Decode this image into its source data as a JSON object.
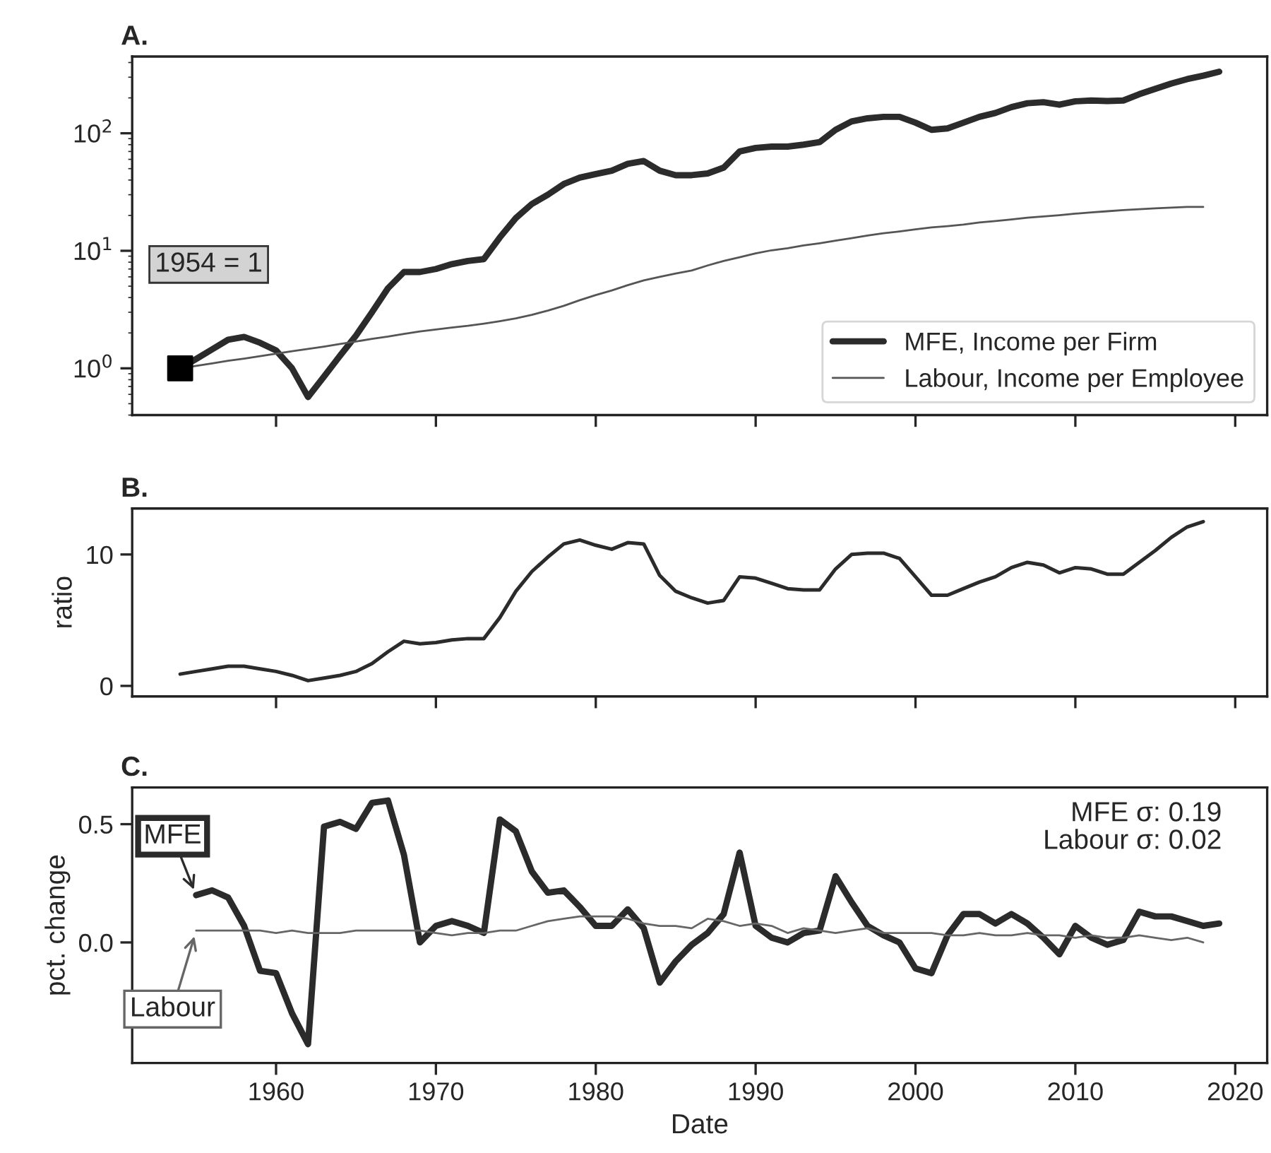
{
  "chart_data": [
    {
      "type": "line",
      "title": "A.",
      "log": "y",
      "xlim": [
        1951,
        2022
      ],
      "xticks": [
        1960,
        1970,
        1980,
        1990,
        2000,
        2010,
        2020
      ],
      "ylim": [
        0.4,
        450
      ],
      "yticks": [
        {
          "value": 1,
          "label": "10$^{0}$"
        },
        {
          "value": 10,
          "label": "10$^{1}$"
        },
        {
          "value": 100,
          "label": "10$^{2}$"
        }
      ],
      "tick_labels": "y",
      "grid": false,
      "legend": "bottom right",
      "annotations": [
        "1954 = 1"
      ],
      "series": [
        {
          "name": "MFE, Income per Firm",
          "color": "#2b2b2b",
          "x": [
            1954,
            1955,
            1956,
            1957,
            1958,
            1959,
            1960,
            1961,
            1962,
            1963,
            1964,
            1965,
            1966,
            1967,
            1968,
            1969,
            1970,
            1971,
            1972,
            1973,
            1974,
            1975,
            1976,
            1977,
            1978,
            1979,
            1980,
            1981,
            1982,
            1983,
            1984,
            1985,
            1986,
            1987,
            1988,
            1989,
            1990,
            1991,
            1992,
            1993,
            1994,
            1995,
            1996,
            1997,
            1998,
            1999,
            2000,
            2001,
            2002,
            2003,
            2004,
            2005,
            2006,
            2007,
            2008,
            2009,
            2010,
            2011,
            2012,
            2013,
            2014,
            2015,
            2016,
            2017,
            2018,
            2019
          ],
          "values": [
            1,
            1.2,
            1.45,
            1.75,
            1.85,
            1.65,
            1.42,
            1.0,
            0.57,
            0.85,
            1.28,
            1.9,
            3.0,
            4.8,
            6.6,
            6.6,
            7.0,
            7.7,
            8.2,
            8.5,
            13,
            19,
            25,
            30,
            37,
            42,
            45,
            48,
            55,
            58,
            48,
            44,
            44,
            45.5,
            51,
            70,
            75,
            77,
            77,
            80,
            84,
            107,
            126,
            134,
            138,
            138,
            123,
            107,
            110,
            123,
            138,
            149,
            167,
            180,
            184,
            175,
            187,
            190,
            188,
            190,
            215,
            239,
            265,
            289,
            309,
            334
          ]
        },
        {
          "name": "Labour, Income per Employee",
          "color": "#555555",
          "x": [
            1954,
            1955,
            1956,
            1957,
            1958,
            1959,
            1960,
            1961,
            1962,
            1963,
            1964,
            1965,
            1966,
            1967,
            1968,
            1969,
            1970,
            1971,
            1972,
            1973,
            1974,
            1975,
            1976,
            1977,
            1978,
            1979,
            1980,
            1981,
            1982,
            1983,
            1984,
            1985,
            1986,
            1987,
            1988,
            1989,
            1990,
            1991,
            1992,
            1993,
            1994,
            1995,
            1996,
            1997,
            1998,
            1999,
            2000,
            2001,
            2002,
            2003,
            2004,
            2005,
            2006,
            2007,
            2008,
            2009,
            2010,
            2011,
            2012,
            2013,
            2014,
            2015,
            2016,
            2017,
            2018
          ],
          "values": [
            1.0,
            1.05,
            1.1,
            1.16,
            1.21,
            1.27,
            1.33,
            1.4,
            1.46,
            1.53,
            1.61,
            1.69,
            1.78,
            1.86,
            1.96,
            2.06,
            2.14,
            2.22,
            2.3,
            2.4,
            2.52,
            2.66,
            2.85,
            3.1,
            3.4,
            3.8,
            4.2,
            4.6,
            5.1,
            5.6,
            6.0,
            6.4,
            6.8,
            7.5,
            8.2,
            8.8,
            9.5,
            10.1,
            10.5,
            11.1,
            11.6,
            12.2,
            12.8,
            13.5,
            14.1,
            14.6,
            15.2,
            15.8,
            16.2,
            16.7,
            17.4,
            17.9,
            18.5,
            19.1,
            19.6,
            20.1,
            20.7,
            21.2,
            21.7,
            22.2,
            22.6,
            23.0,
            23.3,
            23.6,
            23.6
          ]
        },
        {
          "type": "scatter",
          "color": "#000000",
          "marker": "square",
          "x": [
            1954
          ],
          "values": [
            1
          ]
        }
      ]
    },
    {
      "type": "line",
      "title": "B.",
      "ylabel": "ratio",
      "xlim": [
        1951,
        2022
      ],
      "xticks": [
        1960,
        1970,
        1980,
        1990,
        2000,
        2010,
        2020
      ],
      "ylim": [
        -0.8,
        13.5
      ],
      "yticks": [
        0,
        10
      ],
      "tick_labels": "y",
      "grid": false,
      "series": [
        {
          "color": "#2b2b2b",
          "x": [
            1954,
            1955,
            1956,
            1957,
            1958,
            1959,
            1960,
            1961,
            1962,
            1963,
            1964,
            1965,
            1966,
            1967,
            1968,
            1969,
            1970,
            1971,
            1972,
            1973,
            1974,
            1975,
            1976,
            1977,
            1978,
            1979,
            1980,
            1981,
            1982,
            1983,
            1984,
            1985,
            1986,
            1987,
            1988,
            1989,
            1990,
            1991,
            1992,
            1993,
            1994,
            1995,
            1996,
            1997,
            1998,
            1999,
            2000,
            2001,
            2002,
            2003,
            2004,
            2005,
            2006,
            2007,
            2008,
            2009,
            2010,
            2011,
            2012,
            2013,
            2014,
            2015,
            2016,
            2017,
            2018
          ],
          "values": [
            0.9,
            1.1,
            1.3,
            1.5,
            1.5,
            1.3,
            1.1,
            0.8,
            0.4,
            0.6,
            0.8,
            1.1,
            1.7,
            2.6,
            3.4,
            3.2,
            3.3,
            3.5,
            3.6,
            3.6,
            5.2,
            7.2,
            8.7,
            9.8,
            10.8,
            11.1,
            10.7,
            10.4,
            10.9,
            10.8,
            8.4,
            7.2,
            6.7,
            6.3,
            6.5,
            8.3,
            8.2,
            7.8,
            7.4,
            7.3,
            7.3,
            8.9,
            10.0,
            10.1,
            10.1,
            9.7,
            8.3,
            6.9,
            6.9,
            7.4,
            7.9,
            8.3,
            9.0,
            9.4,
            9.2,
            8.6,
            9.0,
            8.9,
            8.5,
            8.5,
            9.4,
            10.3,
            11.3,
            12.1,
            12.5
          ]
        }
      ]
    },
    {
      "type": "line",
      "title": "C.",
      "xlabel": "Date",
      "ylabel": "pct. change",
      "xlim": [
        1951,
        2022
      ],
      "xticks": [
        1960,
        1970,
        1980,
        1990,
        2000,
        2010,
        2020
      ],
      "ylim": [
        -0.51,
        0.655
      ],
      "yticks": [
        {
          "value": 0,
          "label": "0.0"
        },
        0.5
      ],
      "grid": false,
      "annotations": [
        {
          "text": "MFE",
          "x": 1955,
          "y": 0.2
        },
        {
          "text": "Labour",
          "x": 1955,
          "y": 0.05
        },
        "MFE σ: 0.19\nLabour σ: 0.02"
      ],
      "series": [
        {
          "color": "#2b2b2b",
          "x": [
            1955,
            1956,
            1957,
            1958,
            1959,
            1960,
            1961,
            1962,
            1963,
            1964,
            1965,
            1966,
            1967,
            1968,
            1969,
            1970,
            1971,
            1972,
            1973,
            1974,
            1975,
            1976,
            1977,
            1978,
            1979,
            1980,
            1981,
            1982,
            1983,
            1984,
            1985,
            1986,
            1987,
            1988,
            1989,
            1990,
            1991,
            1992,
            1993,
            1994,
            1995,
            1996,
            1997,
            1998,
            1999,
            2000,
            2001,
            2002,
            2003,
            2004,
            2005,
            2006,
            2007,
            2008,
            2009,
            2010,
            2011,
            2012,
            2013,
            2014,
            2015,
            2016,
            2017,
            2018,
            2019
          ],
          "values": [
            0.2,
            0.22,
            0.19,
            0.07,
            -0.12,
            -0.13,
            -0.3,
            -0.43,
            0.49,
            0.51,
            0.48,
            0.59,
            0.6,
            0.37,
            0.0,
            0.07,
            0.09,
            0.07,
            0.04,
            0.52,
            0.47,
            0.3,
            0.21,
            0.22,
            0.15,
            0.07,
            0.07,
            0.14,
            0.06,
            -0.17,
            -0.08,
            -0.01,
            0.04,
            0.12,
            0.38,
            0.07,
            0.02,
            0.0,
            0.04,
            0.05,
            0.28,
            0.17,
            0.07,
            0.03,
            0.0,
            -0.11,
            -0.13,
            0.03,
            0.12,
            0.12,
            0.08,
            0.12,
            0.08,
            0.02,
            -0.05,
            0.07,
            0.02,
            -0.01,
            0.01,
            0.13,
            0.11,
            0.11,
            0.09,
            0.07,
            0.08
          ]
        },
        {
          "color": "#666666",
          "x": [
            1955,
            1956,
            1957,
            1958,
            1959,
            1960,
            1961,
            1962,
            1963,
            1964,
            1965,
            1966,
            1967,
            1968,
            1969,
            1970,
            1971,
            1972,
            1973,
            1974,
            1975,
            1976,
            1977,
            1978,
            1979,
            1980,
            1981,
            1982,
            1983,
            1984,
            1985,
            1986,
            1987,
            1988,
            1989,
            1990,
            1991,
            1992,
            1993,
            1994,
            1995,
            1996,
            1997,
            1998,
            1999,
            2000,
            2001,
            2002,
            2003,
            2004,
            2005,
            2006,
            2007,
            2008,
            2009,
            2010,
            2011,
            2012,
            2013,
            2014,
            2015,
            2016,
            2017,
            2018
          ],
          "values": [
            0.05,
            0.05,
            0.05,
            0.05,
            0.05,
            0.04,
            0.05,
            0.04,
            0.04,
            0.04,
            0.05,
            0.05,
            0.05,
            0.05,
            0.05,
            0.04,
            0.03,
            0.04,
            0.04,
            0.05,
            0.05,
            0.07,
            0.09,
            0.1,
            0.11,
            0.11,
            0.11,
            0.1,
            0.08,
            0.07,
            0.07,
            0.06,
            0.1,
            0.09,
            0.07,
            0.08,
            0.07,
            0.04,
            0.06,
            0.05,
            0.04,
            0.05,
            0.06,
            0.04,
            0.04,
            0.04,
            0.04,
            0.03,
            0.03,
            0.04,
            0.03,
            0.03,
            0.04,
            0.03,
            0.03,
            0.02,
            0.03,
            0.02,
            0.02,
            0.03,
            0.02,
            0.01,
            0.02,
            0.0
          ]
        }
      ]
    }
  ]
}
